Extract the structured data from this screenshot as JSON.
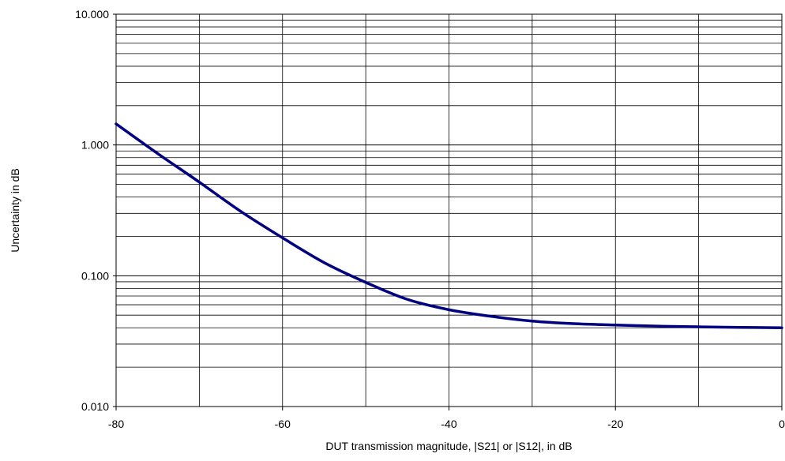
{
  "chart_data": {
    "type": "line",
    "title": "",
    "xlabel": "DUT transmission magnitude, |S21| or |S12|, in dB",
    "ylabel": "Uncertainty in dB",
    "xlim": [
      -80,
      0
    ],
    "ylim": [
      0.01,
      10
    ],
    "yscale": "log",
    "grid": true,
    "legend": "none",
    "x_ticks": [
      -80,
      -60,
      -40,
      -20,
      0
    ],
    "x_tick_labels": [
      "-80",
      "-60",
      "-40",
      "-20",
      "0"
    ],
    "y_ticks": [
      0.01,
      0.1,
      1,
      10
    ],
    "y_tick_labels": [
      "0.010",
      "0.100",
      "1.000",
      "10.000"
    ],
    "series": [
      {
        "color": "#000080",
        "x": [
          -80,
          -75,
          -70,
          -65,
          -60,
          -55,
          -50,
          -45,
          -40,
          -35,
          -30,
          -25,
          -20,
          -15,
          -10,
          -5,
          0
        ],
        "y": [
          1.45,
          0.86,
          0.52,
          0.31,
          0.195,
          0.126,
          0.089,
          0.066,
          0.055,
          0.049,
          0.045,
          0.043,
          0.042,
          0.0412,
          0.0407,
          0.0403,
          0.04
        ]
      }
    ]
  }
}
